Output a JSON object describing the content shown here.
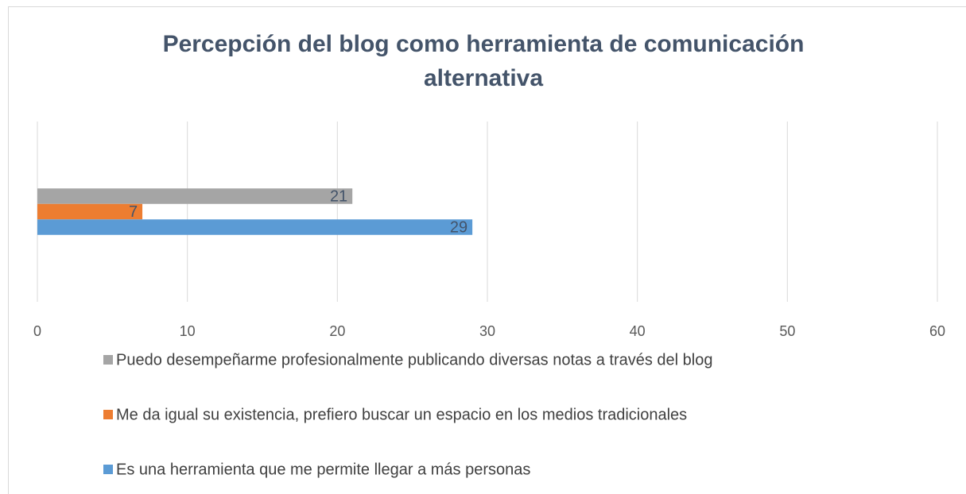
{
  "chart_data": {
    "type": "bar",
    "orientation": "horizontal",
    "title": "Percepción del blog como herramienta de comunicación alternativa",
    "categories": [
      null
    ],
    "series": [
      {
        "name": "Puedo desempeñarme profesionalmente publicando diversas notas a través del blog",
        "color": "#a5a5a5",
        "values": [
          21
        ]
      },
      {
        "name": "Me da igual su existencia, prefiero buscar un espacio en los medios tradicionales",
        "color": "#ed7d31",
        "values": [
          7
        ]
      },
      {
        "name": "Es una herramienta que me permite llegar a más personas",
        "color": "#5b9bd5",
        "values": [
          29
        ]
      }
    ],
    "xlim": [
      0,
      60
    ],
    "xticks": [
      0,
      10,
      20,
      30,
      40,
      50,
      60
    ],
    "grid": true,
    "legend": "bottom"
  }
}
